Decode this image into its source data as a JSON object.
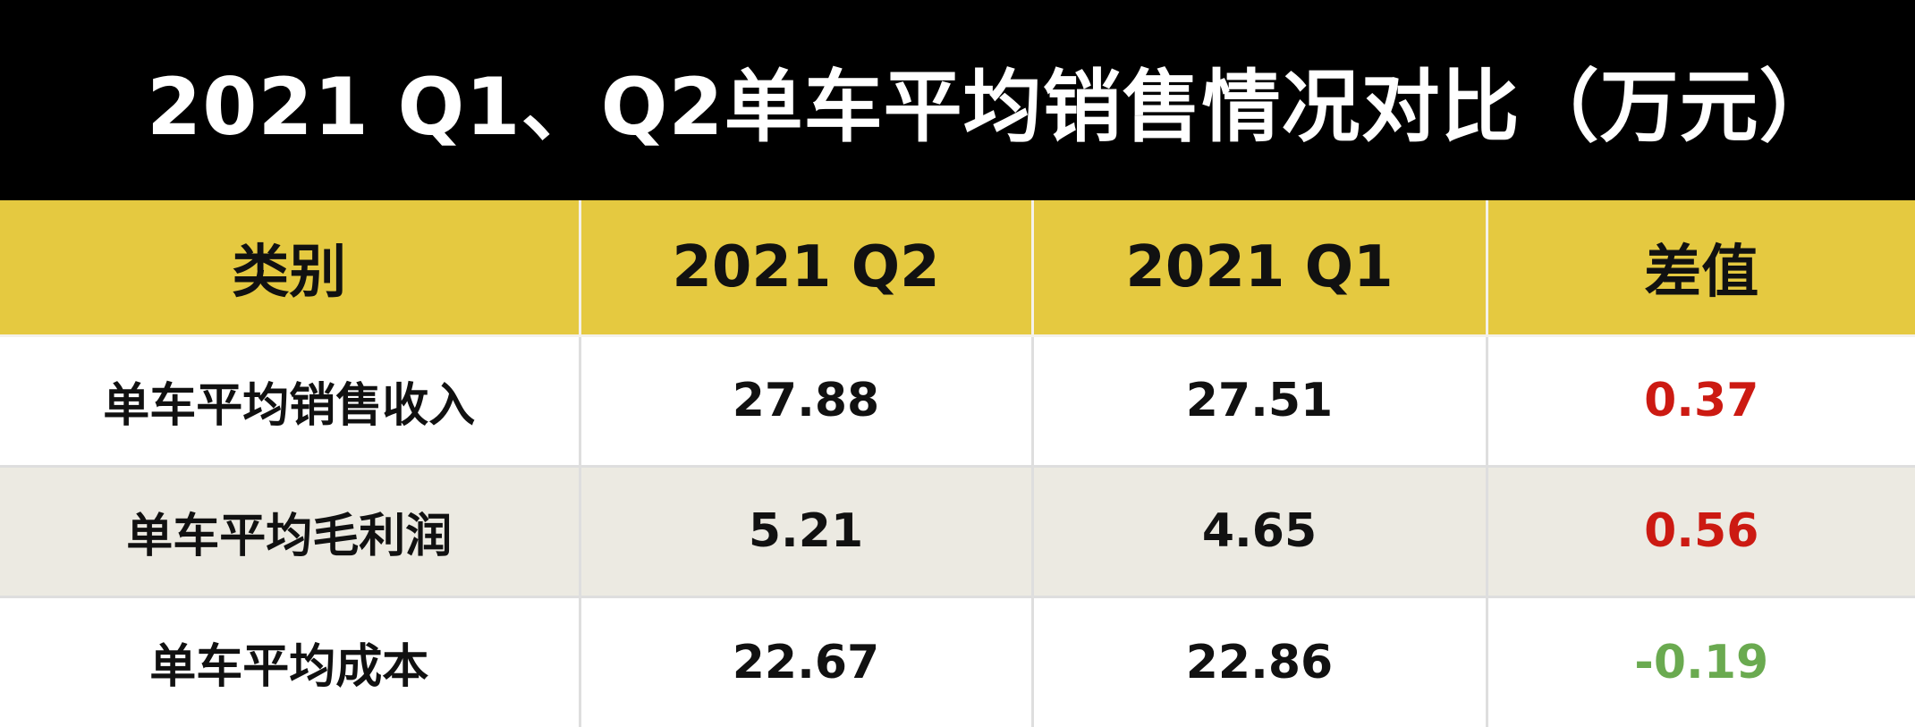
{
  "title": "2021 Q1、Q2单车平均销售情况对比（万元）",
  "colors": {
    "title_bg": "#000000",
    "title_text": "#ffffff",
    "header_bg": "#e5c940",
    "row_alt_bg": "#eceae2",
    "positive": "#cc1a12",
    "negative": "#6aaa50"
  },
  "chart_data": {
    "type": "table",
    "title": "2021 Q1、Q2单车平均销售情况对比（万元）",
    "columns": [
      "类别",
      "2021 Q2",
      "2021 Q1",
      "差值"
    ],
    "rows": [
      {
        "category": "单车平均销售收入",
        "q2": "27.88",
        "q1": "27.51",
        "diff": "0.37",
        "diff_sign": "positive"
      },
      {
        "category": "单车平均毛利润",
        "q2": "5.21",
        "q1": "4.65",
        "diff": "0.56",
        "diff_sign": "positive"
      },
      {
        "category": "单车平均成本",
        "q2": "22.67",
        "q1": "22.86",
        "diff": "-0.19",
        "diff_sign": "negative"
      }
    ]
  }
}
